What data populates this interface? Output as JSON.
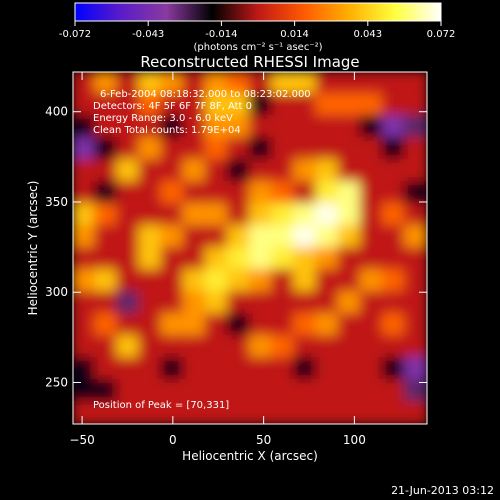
{
  "chart_data": {
    "type": "heatmap",
    "title": "Reconstructed RHESSI Image",
    "xlabel": "Heliocentric X (arcsec)",
    "ylabel": "Heliocentric Y (arcsec)",
    "xlim": [
      -55,
      140
    ],
    "ylim": [
      227,
      422
    ],
    "x_ticks": [
      -50,
      0,
      50,
      100
    ],
    "y_ticks": [
      250,
      300,
      350,
      400
    ],
    "colorbar": {
      "min": -0.072,
      "max": 0.072,
      "ticks": [
        "-0.072",
        "-0.043",
        "-0.014",
        "0.014",
        "0.043",
        "0.072"
      ],
      "unit": "(photons cm⁻² s⁻¹ asec⁻²)",
      "colormap": [
        "#0000ff",
        "#5a1cc8",
        "#8a3aa0",
        "#000000",
        "#c01818",
        "#ff5a00",
        "#ffb000",
        "#ffff40",
        "#ffffff"
      ]
    },
    "info_lines": [
      "6-Feb-2004 08:18:32.000 to 08:23:02.000",
      "Detectors: 4F 5F 6F 7F 8F, Att 0",
      "Energy Range: 3.0 - 6.0 keV",
      "Clean     Total counts: 1.79E+04"
    ],
    "peak_label": "Position of Peak = [70,331]",
    "peak": [
      70,
      331
    ],
    "image_values": [
      [
        0.0,
        0.03,
        0.0,
        0.04,
        0.03,
        0.0,
        0.03,
        0.02,
        0.0,
        0.04,
        0.04,
        0.0,
        0.0,
        0.0,
        0.0,
        0.0
      ],
      [
        0.0,
        0.0,
        0.0,
        0.02,
        0.0,
        0.0,
        0.04,
        0.04,
        -0.02,
        0.0,
        0.0,
        0.02,
        0.02,
        0.02,
        0.0,
        0.0
      ],
      [
        -0.02,
        0.0,
        0.0,
        0.0,
        -0.02,
        0.0,
        0.03,
        0.03,
        0.0,
        0.0,
        0.0,
        0.0,
        0.0,
        -0.02,
        -0.04,
        -0.03
      ],
      [
        -0.04,
        -0.02,
        0.0,
        0.03,
        0.0,
        0.0,
        0.02,
        0.0,
        -0.02,
        0.0,
        0.0,
        0.0,
        0.0,
        0.0,
        -0.02,
        0.0
      ],
      [
        0.0,
        0.0,
        0.04,
        0.0,
        0.0,
        0.03,
        0.0,
        -0.02,
        0.0,
        0.0,
        0.03,
        0.04,
        0.0,
        0.0,
        0.0,
        0.0
      ],
      [
        0.0,
        -0.02,
        0.0,
        0.0,
        0.02,
        0.0,
        0.0,
        0.0,
        0.03,
        0.02,
        0.0,
        0.05,
        0.06,
        0.0,
        0.0,
        -0.02
      ],
      [
        0.04,
        0.02,
        0.0,
        0.0,
        0.0,
        0.03,
        0.03,
        0.0,
        0.04,
        0.05,
        0.06,
        0.07,
        0.06,
        0.0,
        0.02,
        0.0
      ],
      [
        0.03,
        0.0,
        0.0,
        0.04,
        0.03,
        0.0,
        0.0,
        0.04,
        0.06,
        0.06,
        0.07,
        0.06,
        0.04,
        0.0,
        0.0,
        0.03
      ],
      [
        0.0,
        0.0,
        0.0,
        0.04,
        0.0,
        0.0,
        0.04,
        0.05,
        0.06,
        0.05,
        0.04,
        0.03,
        0.0,
        0.0,
        0.0,
        0.0
      ],
      [
        0.03,
        0.04,
        0.0,
        0.0,
        0.0,
        0.04,
        0.05,
        0.04,
        0.03,
        0.0,
        0.04,
        0.0,
        0.0,
        0.03,
        0.02,
        0.0
      ],
      [
        0.0,
        0.0,
        -0.03,
        0.0,
        0.0,
        0.03,
        0.04,
        0.0,
        0.0,
        0.0,
        0.0,
        0.0,
        0.03,
        0.0,
        0.0,
        0.0
      ],
      [
        0.0,
        0.02,
        0.0,
        0.0,
        0.03,
        0.03,
        0.0,
        -0.02,
        0.0,
        0.0,
        0.02,
        0.03,
        0.0,
        0.0,
        0.02,
        0.0
      ],
      [
        0.0,
        0.0,
        0.04,
        0.0,
        0.0,
        0.0,
        0.0,
        0.0,
        0.03,
        0.02,
        0.0,
        0.0,
        0.0,
        0.0,
        0.0,
        0.0
      ],
      [
        -0.02,
        0.0,
        0.0,
        0.0,
        -0.02,
        0.0,
        0.0,
        0.0,
        0.0,
        0.0,
        -0.02,
        0.0,
        0.0,
        0.0,
        -0.02,
        -0.04
      ],
      [
        -0.02,
        -0.02,
        0.0,
        0.0,
        0.0,
        0.0,
        0.0,
        0.0,
        0.0,
        0.0,
        0.0,
        0.0,
        0.0,
        0.0,
        0.0,
        -0.03
      ],
      [
        0.0,
        0.0,
        0.0,
        0.0,
        0.0,
        0.0,
        0.0,
        0.0,
        0.0,
        0.0,
        0.0,
        0.0,
        0.0,
        0.0,
        0.0,
        0.0
      ]
    ]
  },
  "footer": {
    "timestamp": "21-Jun-2013 03:12"
  }
}
